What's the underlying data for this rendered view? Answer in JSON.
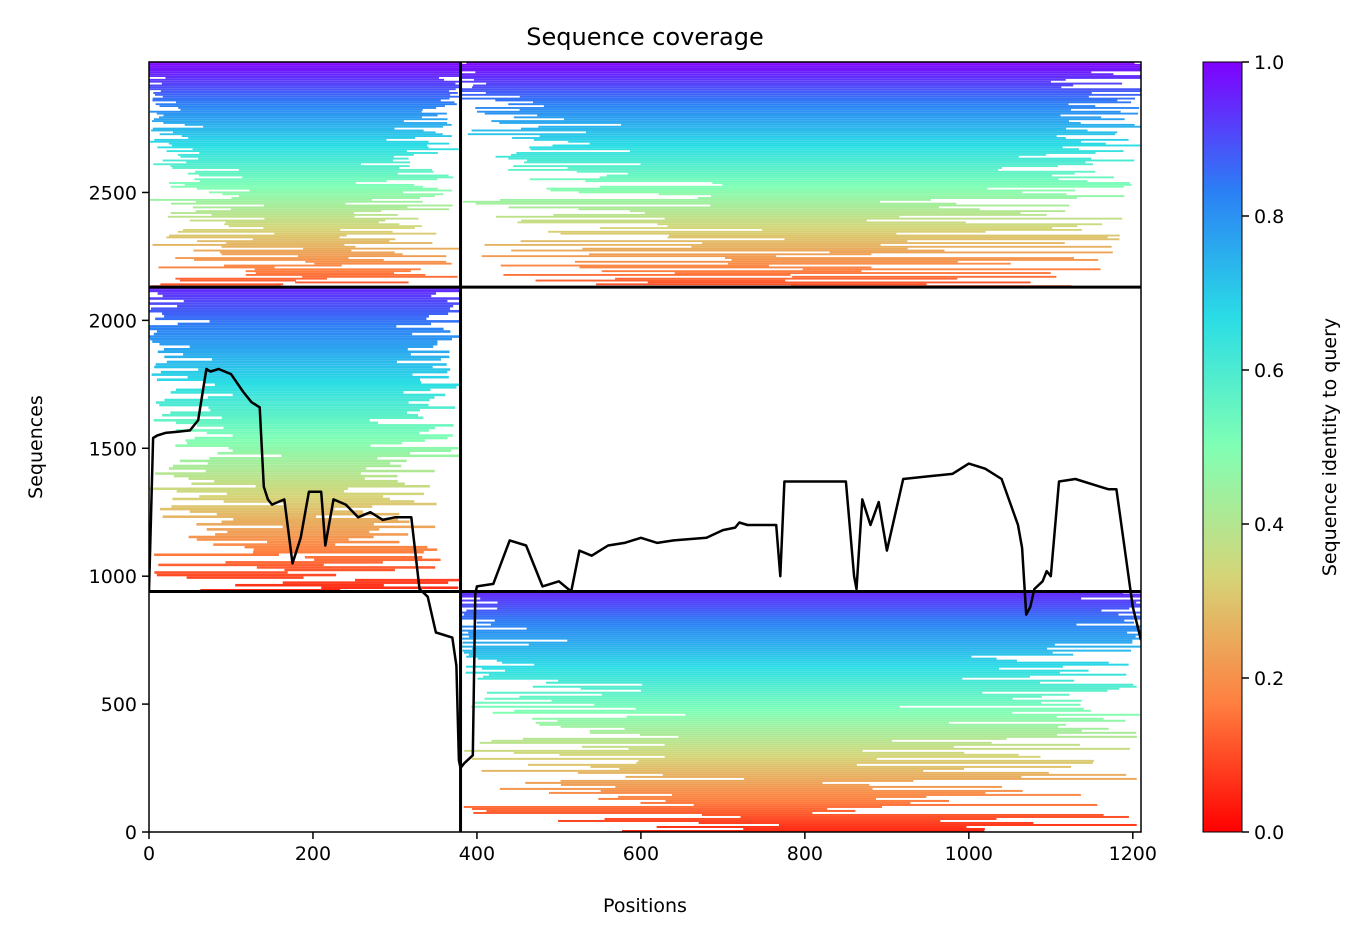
{
  "chart_data": {
    "type": "heatmap",
    "title": "Sequence coverage",
    "xlabel": "Positions",
    "ylabel": "Sequences",
    "xlim": [
      0,
      1210
    ],
    "ylim": [
      0,
      3010
    ],
    "xticks": [
      0,
      200,
      400,
      600,
      800,
      1000,
      1200
    ],
    "yticks": [
      0,
      500,
      1000,
      1500,
      2000,
      2500
    ],
    "colorbar": {
      "label": "Sequence identity to query",
      "range": [
        0,
        1
      ],
      "ticks": [
        "0.0",
        "0.2",
        "0.4",
        "0.6",
        "0.8",
        "1.0"
      ],
      "colormap": "rainbow_r",
      "colors": [
        "#ff0000",
        "#ff7f40",
        "#d5d578",
        "#80ffb4",
        "#2adde5",
        "#2b7ff5",
        "#8000ff"
      ]
    },
    "chains": [
      {
        "x": [
          0,
          380
        ],
        "y": [
          0,
          940
        ]
      },
      {
        "x": [
          380,
          1210
        ],
        "y": [
          940,
          2130
        ]
      }
    ],
    "msa_blocks": [
      {
        "x": [
          0,
          380
        ],
        "y": [
          940,
          2130
        ],
        "identity_top": 0.95,
        "identity_bottom": 0.05,
        "filled_fraction": 0.85
      },
      {
        "x": [
          380,
          1210
        ],
        "y": [
          0,
          940
        ],
        "identity_top": 0.95,
        "identity_bottom": 0.05,
        "filled_fraction": 0.9
      },
      {
        "x": [
          0,
          380
        ],
        "y": [
          2130,
          3010
        ],
        "identity_top": 1.0,
        "identity_bottom": 0.1,
        "filled_fraction": 0.9
      },
      {
        "x": [
          380,
          1210
        ],
        "y": [
          2130,
          3010
        ],
        "identity_top": 1.0,
        "identity_bottom": 0.1,
        "filled_fraction": 0.9
      }
    ],
    "chain_boundaries": {
      "x": [
        380
      ],
      "y": [
        940,
        2130
      ]
    },
    "coverage_line": {
      "x": [
        0,
        5,
        10,
        20,
        35,
        50,
        60,
        70,
        75,
        85,
        100,
        115,
        125,
        135,
        140,
        145,
        150,
        165,
        175,
        180,
        185,
        195,
        210,
        215,
        225,
        240,
        255,
        270,
        285,
        300,
        320,
        330,
        340,
        350,
        360,
        370,
        375,
        378,
        380,
        385,
        395,
        398,
        400,
        420,
        440,
        460,
        480,
        500,
        515,
        525,
        540,
        560,
        580,
        600,
        620,
        640,
        680,
        700,
        715,
        720,
        730,
        750,
        765,
        770,
        775,
        790,
        820,
        840,
        850,
        860,
        863,
        870,
        880,
        890,
        900,
        920,
        950,
        980,
        1000,
        1020,
        1040,
        1050,
        1060,
        1065,
        1070,
        1075,
        1080,
        1090,
        1095,
        1100,
        1110,
        1130,
        1160,
        1170,
        1180,
        1190,
        1200,
        1210
      ],
      "y": [
        940,
        1540,
        1550,
        1560,
        1565,
        1570,
        1610,
        1810,
        1800,
        1810,
        1790,
        1720,
        1680,
        1660,
        1350,
        1300,
        1280,
        1300,
        1050,
        1100,
        1150,
        1330,
        1330,
        1120,
        1300,
        1280,
        1230,
        1250,
        1220,
        1230,
        1230,
        950,
        920,
        780,
        770,
        760,
        650,
        280,
        250,
        270,
        300,
        930,
        960,
        970,
        1140,
        1120,
        960,
        980,
        940,
        1100,
        1080,
        1120,
        1130,
        1150,
        1130,
        1140,
        1150,
        1180,
        1190,
        1210,
        1200,
        1200,
        1200,
        1000,
        1370,
        1370,
        1370,
        1370,
        1370,
        1000,
        950,
        1300,
        1200,
        1290,
        1100,
        1380,
        1390,
        1400,
        1440,
        1420,
        1380,
        1290,
        1200,
        1110,
        850,
        880,
        950,
        980,
        1020,
        1000,
        1370,
        1380,
        1350,
        1340,
        1340,
        1110,
        880,
        750
      ]
    }
  }
}
